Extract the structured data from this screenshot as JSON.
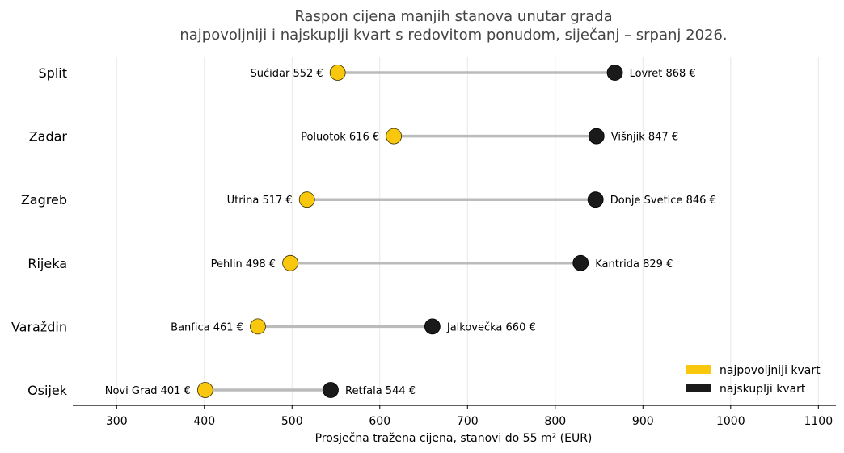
{
  "chart_data": {
    "type": "dumbbell",
    "title": "Raspon cijena manjih stanova unutar grada",
    "subtitle": "najpovoljniji i najskuplji kvart s redovitom ponudom, siječanj – srpanj 2026.",
    "xlabel": "Prosječna tražena cijena, stanovi do 55 m² (EUR)",
    "ylabel": "",
    "xlim": [
      250,
      1120
    ],
    "xticks": [
      300,
      400,
      500,
      600,
      700,
      800,
      900,
      1000,
      1100
    ],
    "grid": "vertical",
    "legend_position": "bottom-right",
    "currency_symbol": "€",
    "legend": [
      {
        "label": "najpovoljniji kvart",
        "color": "#F9C80E"
      },
      {
        "label": "najskuplji kvart",
        "color": "#1A1A1A"
      }
    ],
    "colors": {
      "low": "#F9C80E",
      "high": "#1A1A1A",
      "connector": "#BBBBBB"
    },
    "rows": [
      {
        "city": "Split",
        "low_name": "Sućidar",
        "low": 552,
        "high_name": "Lovret",
        "high": 868
      },
      {
        "city": "Zadar",
        "low_name": "Poluotok",
        "low": 616,
        "high_name": "Višnjik",
        "high": 847
      },
      {
        "city": "Zagreb",
        "low_name": "Utrina",
        "low": 517,
        "high_name": "Donje Svetice",
        "high": 846
      },
      {
        "city": "Rijeka",
        "low_name": "Pehlin",
        "low": 498,
        "high_name": "Kantrida",
        "high": 829
      },
      {
        "city": "Varaždin",
        "low_name": "Banfica",
        "low": 461,
        "high_name": "Jalkovečka",
        "high": 660
      },
      {
        "city": "Osijek",
        "low_name": "Novi Grad",
        "low": 401,
        "high_name": "Retfala",
        "high": 544
      }
    ]
  }
}
